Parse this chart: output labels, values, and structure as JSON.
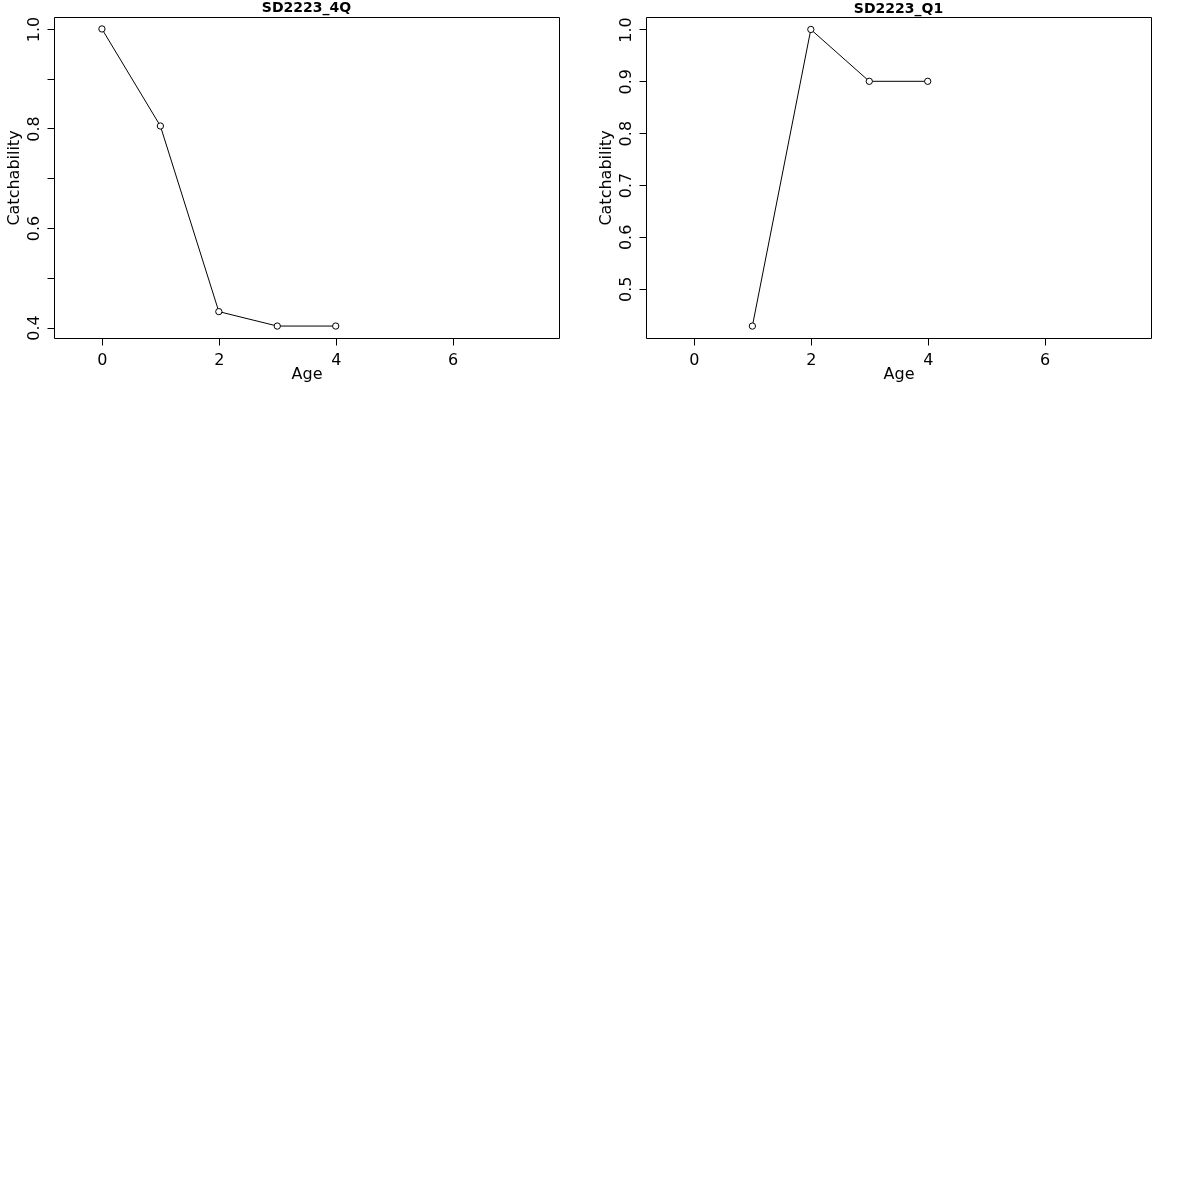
{
  "chart_data": [
    {
      "type": "line",
      "title": "SD2223_4Q",
      "xlabel": "Age",
      "ylabel": "Catchability",
      "x": [
        0,
        1,
        2,
        3,
        4
      ],
      "series": [
        {
          "color": "#000000",
          "values": [
            1.0,
            0.805,
            0.432,
            0.403,
            0.403
          ]
        }
      ],
      "xlim": [
        -0.82,
        7.82
      ],
      "xticks": [
        0,
        2,
        4,
        6
      ],
      "ylim": [
        0.379,
        1.024
      ],
      "yticks": [
        0.4,
        {
          "value": 0.5,
          "label": null
        },
        0.6,
        {
          "value": 0.7,
          "label": null
        },
        0.8,
        {
          "value": 0.9,
          "label": null
        },
        {
          "value": 1,
          "label": "1.0"
        }
      ],
      "marker": "circle",
      "line_style": "solid",
      "grid": false
    },
    {
      "type": "line",
      "title": "SD2223_Q1",
      "xlabel": "Age",
      "ylabel": "Catchability",
      "x": [
        1,
        2,
        3,
        4
      ],
      "series": [
        {
          "color": "#000000",
          "values": [
            0.428,
            1.0,
            0.9,
            0.9
          ]
        }
      ],
      "xlim": [
        -0.82,
        7.82
      ],
      "xticks": [
        0,
        2,
        4,
        6
      ],
      "ylim": [
        0.405,
        1.024
      ],
      "yticks": [
        0.5,
        0.6,
        0.7,
        0.8,
        0.9,
        {
          "value": 1,
          "label": "1.0"
        }
      ],
      "marker": "circle",
      "line_style": "solid",
      "grid": false
    }
  ]
}
